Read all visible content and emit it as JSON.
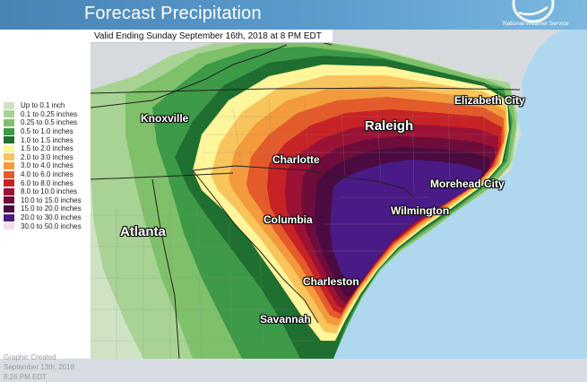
{
  "header": {
    "title": "Forecast Precipitation",
    "agency": "National Weather Service"
  },
  "valid_text": "Valid Ending Sunday September 16th, 2018 at 8 PM EDT",
  "legend": [
    {
      "label": "Up to 0.1 inch",
      "color": "#cfe3c4"
    },
    {
      "label": "0.1 to 0.25 inches",
      "color": "#a8d394"
    },
    {
      "label": "0.25 to 0.5 inches",
      "color": "#7fc06a"
    },
    {
      "label": "0.5 to 1.0 inches",
      "color": "#3d9a47"
    },
    {
      "label": "1.0 to 1.5 inches",
      "color": "#1f6f31"
    },
    {
      "label": "1.5 to 2.0 inches",
      "color": "#fff59a"
    },
    {
      "label": "2.0 to 3.0 inches",
      "color": "#f8c45c"
    },
    {
      "label": "3.0 to 4.0 inches",
      "color": "#f39a3c"
    },
    {
      "label": "4.0 to 6.0 inches",
      "color": "#e35b2a"
    },
    {
      "label": "6.0 to 8.0 inches",
      "color": "#c72226"
    },
    {
      "label": "8.0 to 10.0 inches",
      "color": "#9b1236"
    },
    {
      "label": "10.0 to 15.0 inches",
      "color": "#6e0c3b"
    },
    {
      "label": "15.0 to 20.0 inches",
      "color": "#4b0b40"
    },
    {
      "label": "20.0 to 30.0 inches",
      "color": "#4a1a86"
    },
    {
      "label": "30.0 to 50.0 inches",
      "color": "#f4dcef"
    }
  ],
  "cities": {
    "knoxville": "Knoxville",
    "raleigh": "Raleigh",
    "elizabeth_city": "Elizabeth City",
    "charlotte": "Charlotte",
    "morehead_city": "Morehead City",
    "wilmington": "Wilmington",
    "columbia": "Columbia",
    "atlanta": "Atlanta",
    "charleston": "Charleston",
    "savannah": "Savannah"
  },
  "footer": {
    "line1": "Graphic Created",
    "line2": "September 13th, 2018",
    "line3": "8:26 PM EDT"
  }
}
